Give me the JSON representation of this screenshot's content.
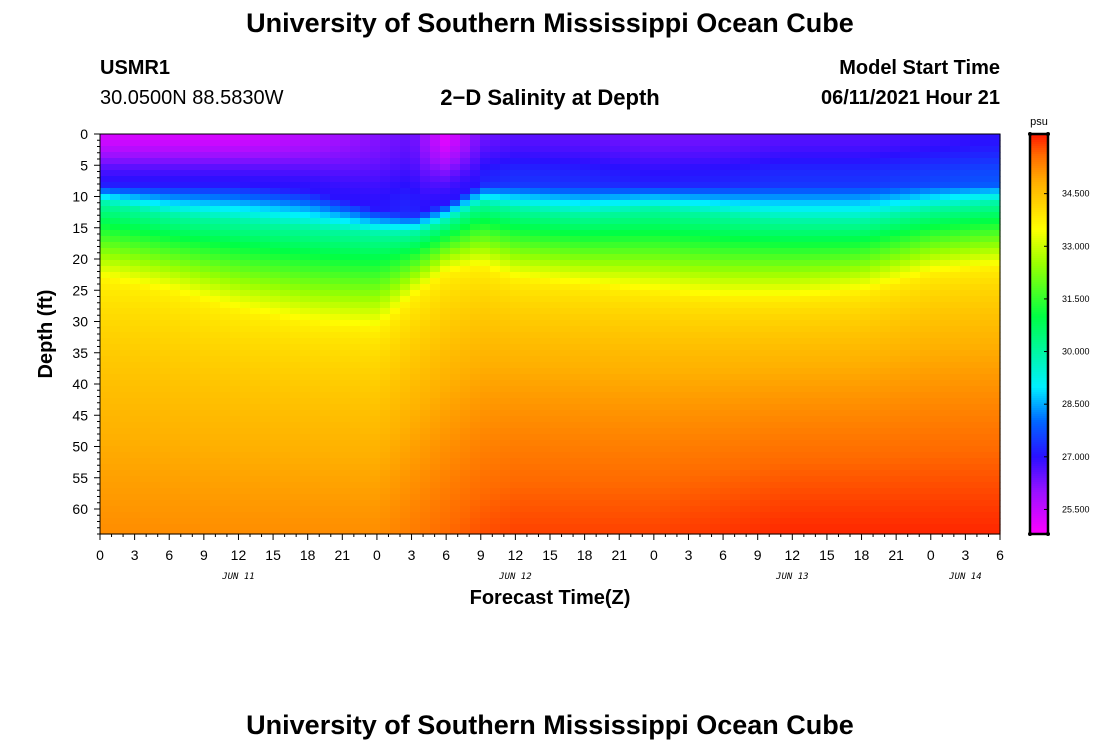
{
  "header": {
    "title": "University of Southern Mississippi Ocean Cube",
    "station_id": "USMR1",
    "coords": "30.0500N  88.5830W",
    "subtitle": "2−D Salinity at Depth",
    "start_label": "Model Start Time",
    "start_value": "06/11/2021 Hour 21"
  },
  "footer": {
    "title": "University of Southern Mississippi Ocean Cube"
  },
  "chart_data": {
    "type": "heatmap",
    "title": "2-D Salinity at Depth",
    "xlabel": "Forecast Time(Z)",
    "ylabel": "Depth (ft)",
    "x_tick_labels": [
      "0",
      "3",
      "6",
      "9",
      "12",
      "15",
      "18",
      "21",
      "0",
      "3",
      "6",
      "9",
      "12",
      "15",
      "18",
      "21",
      "0",
      "3",
      "6",
      "9",
      "12",
      "15",
      "18",
      "21",
      "0",
      "3",
      "6"
    ],
    "date_labels": [
      {
        "label": "JUN 11",
        "tick_index": 4
      },
      {
        "label": "JUN 12",
        "tick_index": 12
      },
      {
        "label": "JUN 13",
        "tick_index": 20
      },
      {
        "label": "JUN 14",
        "tick_index": 25
      }
    ],
    "y_ticks": [
      0,
      5,
      10,
      15,
      20,
      25,
      30,
      35,
      40,
      45,
      50,
      55,
      60
    ],
    "ylim": [
      0,
      64
    ],
    "xlim_hours": [
      0,
      78
    ],
    "colorbar": {
      "unit": "psu",
      "range": [
        24.8,
        36.2
      ],
      "ticks": [
        "25.500",
        "27.000",
        "28.500",
        "30.000",
        "31.500",
        "33.000",
        "34.500"
      ],
      "stops": [
        {
          "v": 24.8,
          "c": "#ff00ff"
        },
        {
          "v": 26.0,
          "c": "#9a11ff"
        },
        {
          "v": 27.0,
          "c": "#2a10ff"
        },
        {
          "v": 28.0,
          "c": "#0066ff"
        },
        {
          "v": 29.0,
          "c": "#00f0ff"
        },
        {
          "v": 31.0,
          "c": "#00ff44"
        },
        {
          "v": 32.5,
          "c": "#9aff00"
        },
        {
          "v": 33.5,
          "c": "#ffff00"
        },
        {
          "v": 34.8,
          "c": "#ffb000"
        },
        {
          "v": 35.6,
          "c": "#ff6a00"
        },
        {
          "v": 36.2,
          "c": "#ff1800"
        }
      ]
    },
    "isoline_hours": [
      0,
      6,
      12,
      18,
      24,
      27,
      30,
      33,
      36,
      42,
      48,
      54,
      60,
      66,
      72,
      78
    ],
    "halocline_depth_ft": [
      11,
      13,
      14,
      15,
      16,
      16,
      14,
      11,
      12,
      13,
      12,
      13,
      14,
      14,
      12,
      11
    ],
    "upper_layer_ft": [
      8,
      8,
      8,
      9,
      12,
      13,
      11,
      8,
      8,
      8,
      8,
      8,
      8,
      8,
      8,
      8
    ],
    "thermo_lower_ft": [
      23,
      25,
      28,
      30,
      31,
      26,
      22,
      21,
      23,
      24,
      25,
      26,
      26,
      25,
      22,
      21
    ],
    "surface_salinity": [
      25.3,
      25.3,
      25.3,
      25.7,
      26.2,
      26.5,
      25.1,
      26.4,
      26.6,
      26.5,
      26.3,
      26.4,
      26.6,
      26.6,
      26.8,
      27.0
    ],
    "deep_salinity": [
      35.2,
      35.2,
      35.2,
      35.2,
      35.2,
      35.4,
      35.6,
      35.8,
      35.9,
      35.9,
      35.9,
      36.0,
      36.1,
      36.1,
      36.1,
      36.1
    ]
  }
}
